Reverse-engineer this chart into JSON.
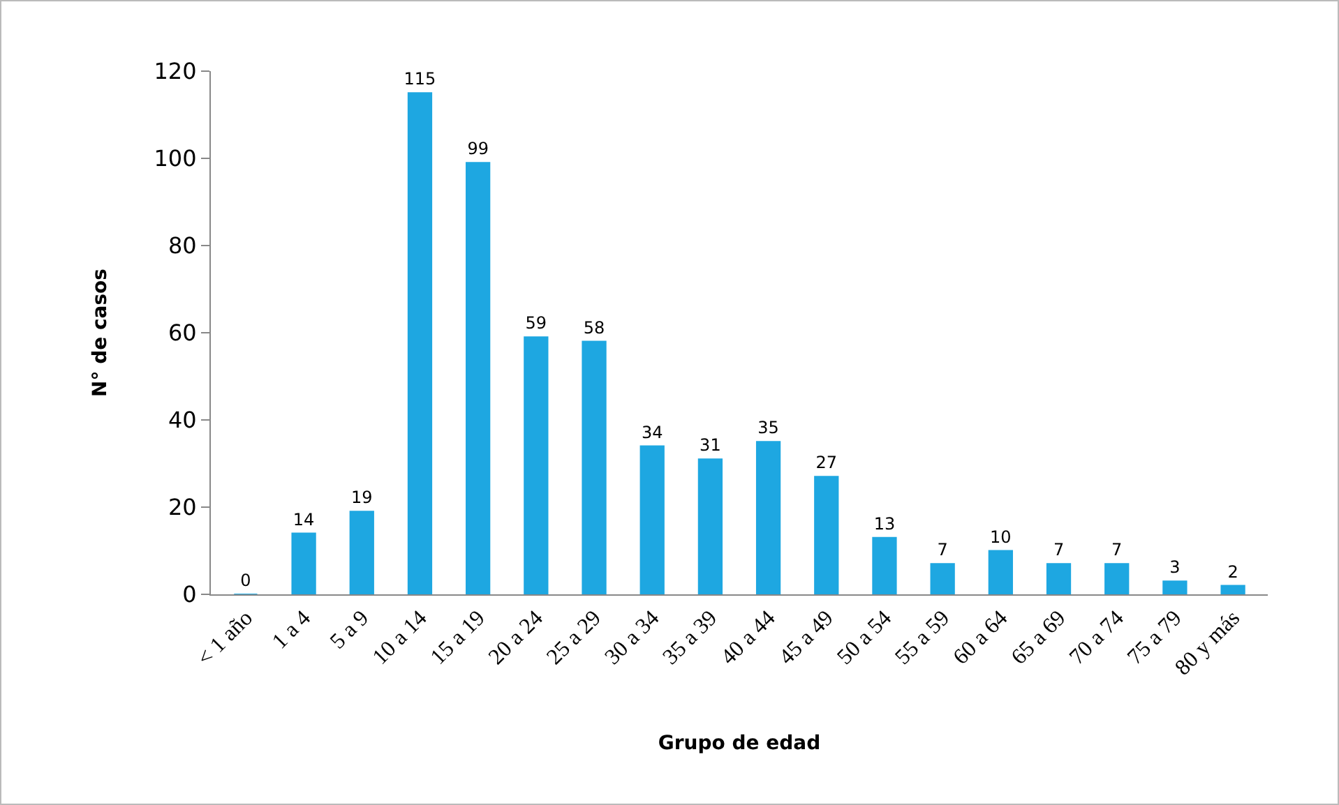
{
  "chart_data": {
    "type": "bar",
    "xlabel": "Grupo de edad",
    "ylabel": "N° de casos",
    "categories": [
      "< 1 año",
      "1 a 4",
      "5 a 9",
      "10 a 14",
      "15 a 19",
      "20 a 24",
      "25 a 29",
      "30 a 34",
      "35 a 39",
      "40 a 44",
      "45 a 49",
      "50 a 54",
      "55 a 59",
      "60 a 64",
      "65 a 69",
      "70 a 74",
      "75 a 79",
      "80 y más"
    ],
    "values": [
      0,
      14,
      19,
      115,
      99,
      59,
      58,
      34,
      31,
      35,
      27,
      13,
      7,
      10,
      7,
      7,
      3,
      2
    ],
    "color": "#1ea7e1",
    "ylim": [
      0,
      120
    ],
    "yticks": [
      0,
      20,
      40,
      60,
      80,
      100,
      120
    ],
    "grid": false,
    "data_labels": true
  }
}
